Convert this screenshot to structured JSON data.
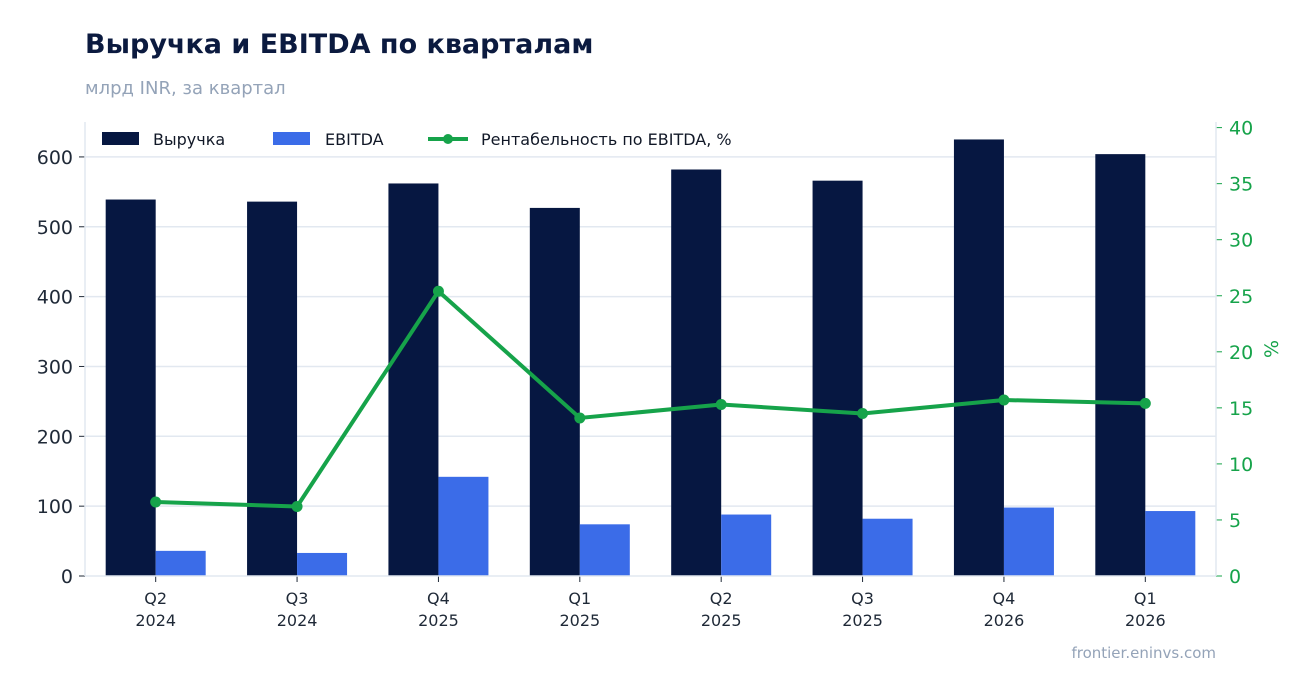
{
  "title": "Выручка и EBITDA по кварталам",
  "subtitle": "млрд INR, за квартал",
  "source": "frontier.eninvs.com",
  "colors": {
    "revenue": "#061741",
    "ebitda": "#3b6ce8",
    "margin": "#16a34a",
    "grid": "#e2e8f0",
    "title": "#0b1a3f",
    "muted": "#94a3b8"
  },
  "chart_data": {
    "type": "bar",
    "categories": [
      [
        "Q2",
        "2024"
      ],
      [
        "Q3",
        "2024"
      ],
      [
        "Q4",
        "2025"
      ],
      [
        "Q1",
        "2025"
      ],
      [
        "Q2",
        "2025"
      ],
      [
        "Q3",
        "2025"
      ],
      [
        "Q4",
        "2026"
      ],
      [
        "Q1",
        "2026"
      ]
    ],
    "series": [
      {
        "name": "Выручка",
        "kind": "bar",
        "axis": "left",
        "values": [
          539,
          536,
          562,
          527,
          582,
          566,
          625,
          604
        ]
      },
      {
        "name": "EBITDA",
        "kind": "bar",
        "axis": "left",
        "values": [
          36,
          33,
          142,
          74,
          88,
          82,
          98,
          93
        ]
      },
      {
        "name": "Рентабельность по EBITDA, %",
        "kind": "line",
        "axis": "right",
        "values": [
          6.6,
          6.2,
          25.4,
          14.1,
          15.3,
          14.5,
          15.7,
          15.4
        ]
      }
    ],
    "ylim_left": [
      0,
      650
    ],
    "yticks_left": [
      0,
      100,
      200,
      300,
      400,
      500,
      600
    ],
    "ylim_right": [
      0,
      40.5
    ],
    "yticks_right": [
      0,
      5,
      10,
      15,
      20,
      25,
      30,
      35,
      40
    ],
    "ylabel_right": "%",
    "legend_position": "top-left",
    "grid": true
  }
}
